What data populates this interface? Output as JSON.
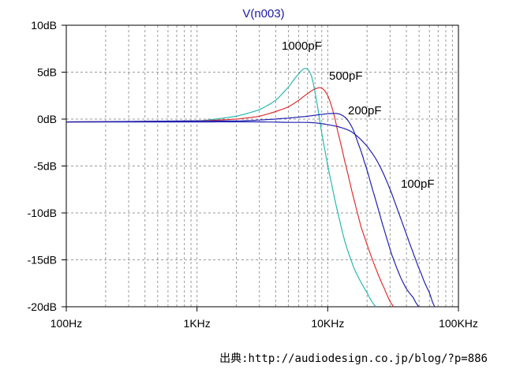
{
  "chart_data": {
    "type": "line",
    "title": "V(n003)",
    "x_scale": "log",
    "xlim": [
      100,
      100000
    ],
    "ylim": [
      -20,
      10
    ],
    "x_ticks": [
      {
        "value": 100,
        "label": "100Hz"
      },
      {
        "value": 1000,
        "label": "1KHz"
      },
      {
        "value": 10000,
        "label": "10KHz"
      },
      {
        "value": 100000,
        "label": "100KHz"
      }
    ],
    "y_ticks": [
      {
        "value": 10,
        "label": "10dB"
      },
      {
        "value": 5,
        "label": "5dB"
      },
      {
        "value": 0,
        "label": "0dB"
      },
      {
        "value": -5,
        "label": "-5dB"
      },
      {
        "value": -10,
        "label": "-10dB"
      },
      {
        "value": -15,
        "label": "-15dB"
      },
      {
        "value": -20,
        "label": "-20dB"
      }
    ],
    "grid": true,
    "series": [
      {
        "name": "1000pF",
        "color": "#2ab8b0",
        "points": [
          [
            100,
            -0.3
          ],
          [
            1000,
            -0.2
          ],
          [
            2000,
            0.3
          ],
          [
            3000,
            1.0
          ],
          [
            4000,
            2.0
          ],
          [
            5000,
            3.4
          ],
          [
            6000,
            4.8
          ],
          [
            6800,
            5.4
          ],
          [
            7500,
            4.6
          ],
          [
            8200,
            2.0
          ],
          [
            9000,
            -1.5
          ],
          [
            10000,
            -5.0
          ],
          [
            11500,
            -9.0
          ],
          [
            13500,
            -13.0
          ],
          [
            16000,
            -16.0
          ],
          [
            20000,
            -18.5
          ],
          [
            23500,
            -20.0
          ]
        ]
      },
      {
        "name": "500pF",
        "color": "#e03030",
        "points": [
          [
            100,
            -0.3
          ],
          [
            1000,
            -0.2
          ],
          [
            2000,
            0.0
          ],
          [
            3000,
            0.3
          ],
          [
            4000,
            0.8
          ],
          [
            5000,
            1.3
          ],
          [
            6000,
            2.0
          ],
          [
            7000,
            2.7
          ],
          [
            8000,
            3.2
          ],
          [
            9000,
            3.3
          ],
          [
            10000,
            2.5
          ],
          [
            11000,
            0.8
          ],
          [
            12000,
            -1.5
          ],
          [
            13500,
            -4.5
          ],
          [
            15500,
            -8.0
          ],
          [
            18000,
            -11.5
          ],
          [
            22000,
            -15.0
          ],
          [
            27000,
            -18.0
          ],
          [
            32000,
            -20.0
          ]
        ]
      },
      {
        "name": "200pF",
        "color": "#2020b0",
        "points": [
          [
            100,
            -0.3
          ],
          [
            1000,
            -0.2
          ],
          [
            2000,
            -0.2
          ],
          [
            3000,
            -0.1
          ],
          [
            5000,
            0.1
          ],
          [
            7000,
            0.3
          ],
          [
            9000,
            0.5
          ],
          [
            11000,
            0.6
          ],
          [
            12500,
            0.5
          ],
          [
            14000,
            0.0
          ],
          [
            15500,
            -1.0
          ],
          [
            17000,
            -2.5
          ],
          [
            19000,
            -4.5
          ],
          [
            22000,
            -7.5
          ],
          [
            26000,
            -11.0
          ],
          [
            31000,
            -14.5
          ],
          [
            38000,
            -17.5
          ],
          [
            45000,
            -19.0
          ],
          [
            50000,
            -20.0
          ]
        ]
      },
      {
        "name": "100pF",
        "color": "#2020b0",
        "points": [
          [
            100,
            -0.3
          ],
          [
            1000,
            -0.3
          ],
          [
            3000,
            -0.3
          ],
          [
            5000,
            -0.35
          ],
          [
            8000,
            -0.4
          ],
          [
            12000,
            -0.8
          ],
          [
            15000,
            -1.3
          ],
          [
            18000,
            -2.2
          ],
          [
            21000,
            -3.3
          ],
          [
            25000,
            -5.0
          ],
          [
            30000,
            -7.5
          ],
          [
            36000,
            -10.5
          ],
          [
            43000,
            -13.5
          ],
          [
            52000,
            -16.5
          ],
          [
            60000,
            -18.5
          ],
          [
            66000,
            -20.0
          ]
        ]
      }
    ],
    "annotations": [
      "1000pF",
      "500pF",
      "200pF",
      "100pF"
    ]
  },
  "source_text": "出典:http://audiodesign.co.jp/blog/?p=886"
}
